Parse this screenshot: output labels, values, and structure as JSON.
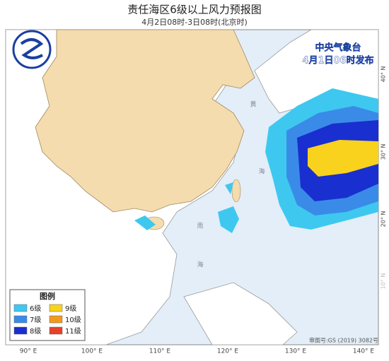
{
  "header": {
    "title": "责任海区6级以上风力预报图",
    "subtitle": "4月2日08时-3日08时(北京时)"
  },
  "issuer": {
    "name": "中央气象台",
    "time": "4月1日06时发布"
  },
  "legend": {
    "title": "图例",
    "items": [
      {
        "label": "6级",
        "color": "#3ec8f0"
      },
      {
        "label": "7级",
        "color": "#3a8be8"
      },
      {
        "label": "8级",
        "color": "#1a2fd0"
      },
      {
        "label": "9级",
        "color": "#f8d21c"
      },
      {
        "label": "10级",
        "color": "#f29a1e"
      },
      {
        "label": "11级",
        "color": "#e8402a"
      }
    ]
  },
  "map": {
    "longitude_labels": [
      "90° E",
      "100° E",
      "110° E",
      "120° E",
      "130° E",
      "140° E"
    ],
    "latitude_labels": [
      "40° N",
      "30° N",
      "20° N",
      "10° N"
    ],
    "sea_labels": [
      "黄",
      "海",
      "南",
      "海"
    ],
    "approval": "审图号:GS (2019) 3082号"
  }
}
